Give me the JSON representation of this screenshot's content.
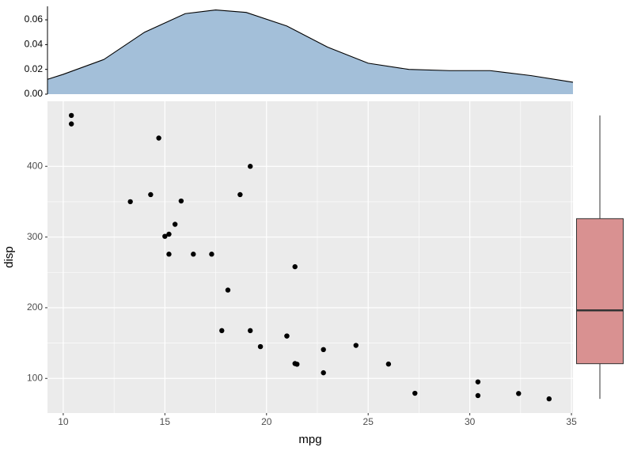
{
  "chart_data": [
    {
      "type": "density",
      "x": [
        9.225,
        10,
        12,
        14,
        16,
        17.5,
        19,
        21,
        23,
        25,
        27,
        29,
        31,
        33,
        35.075
      ],
      "values": [
        0.012,
        0.016,
        0.028,
        0.05,
        0.065,
        0.068,
        0.066,
        0.055,
        0.038,
        0.025,
        0.02,
        0.019,
        0.019,
        0.015,
        0.0096
      ],
      "color": "#a3bfd9",
      "xlim": [
        9.225,
        35.075
      ],
      "ylim": [
        0,
        0.0709
      ],
      "yticks": [
        {
          "value": 0,
          "label": "0.00"
        },
        {
          "value": 0.02,
          "label": "0.02"
        },
        {
          "value": 0.04,
          "label": "0.04"
        },
        {
          "value": 0.06,
          "label": "0.06"
        }
      ]
    },
    {
      "type": "scatter",
      "x_label": "mpg",
      "y_label": "disp",
      "grid": true,
      "color": "#000000",
      "x": [
        21.0,
        21.0,
        22.8,
        21.4,
        18.7,
        18.1,
        14.3,
        24.4,
        22.8,
        19.2,
        17.8,
        16.4,
        17.3,
        15.2,
        10.4,
        10.4,
        14.7,
        32.4,
        30.4,
        33.9,
        21.5,
        15.5,
        15.2,
        13.3,
        19.2,
        27.3,
        26.0,
        30.4,
        15.8,
        19.7,
        15.0,
        21.4
      ],
      "values": [
        160,
        160,
        108,
        258,
        360,
        225,
        360,
        146.7,
        140.8,
        167.6,
        167.6,
        275.8,
        275.8,
        275.8,
        472,
        460,
        440,
        78.7,
        75.7,
        71.1,
        120.1,
        318,
        304,
        350,
        400,
        79,
        120.3,
        95.1,
        351,
        145,
        301,
        121
      ],
      "xlim": [
        9.225,
        35.075
      ],
      "ylim": [
        51.055,
        492.045
      ],
      "xticks": [
        10,
        15,
        20,
        25,
        30,
        35
      ],
      "yticks": [
        100,
        200,
        300,
        400
      ]
    },
    {
      "type": "box",
      "color": "#d99191",
      "min": 71.1,
      "q1": 120.825,
      "median": 196.3,
      "q3": 326,
      "max": 472,
      "ylim": [
        51.055,
        492.045
      ]
    }
  ]
}
